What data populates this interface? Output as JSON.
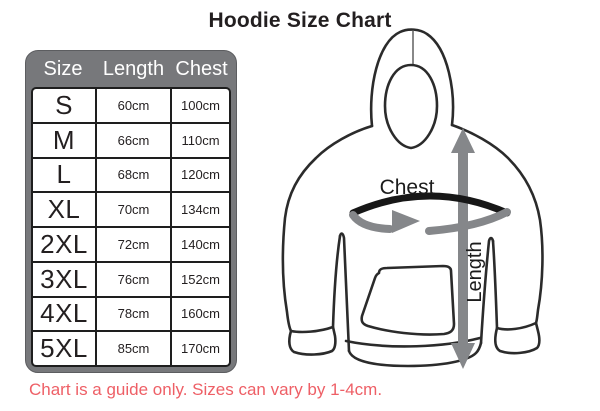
{
  "title": "Hoodie Size Chart",
  "disclaimer": "Chart is a guide only. Sizes can vary by 1-4cm.",
  "colors": {
    "table_frame_gray": "#77787b",
    "header_text": "#ffffff",
    "cell_border_black": "#1e1e1e",
    "body_text": "#231f20",
    "disclaimer_red": "#ee5f66",
    "arrow_gray": "#85878a",
    "chest_band_black": "#171717",
    "outline": "#2b2b2b"
  },
  "table": {
    "headers": [
      "Size",
      "Length",
      "Chest"
    ],
    "rows": [
      {
        "size": "S",
        "length": "60cm",
        "chest": "100cm"
      },
      {
        "size": "M",
        "length": "66cm",
        "chest": "110cm"
      },
      {
        "size": "L",
        "length": "68cm",
        "chest": "120cm"
      },
      {
        "size": "XL",
        "length": "70cm",
        "chest": "134cm"
      },
      {
        "size": "2XL",
        "length": "72cm",
        "chest": "140cm"
      },
      {
        "size": "3XL",
        "length": "76cm",
        "chest": "152cm"
      },
      {
        "size": "4XL",
        "length": "78cm",
        "chest": "160cm"
      },
      {
        "size": "5XL",
        "length": "85cm",
        "chest": "170cm"
      }
    ]
  },
  "diagram": {
    "chest_label": "Chest",
    "length_label": "Length"
  }
}
